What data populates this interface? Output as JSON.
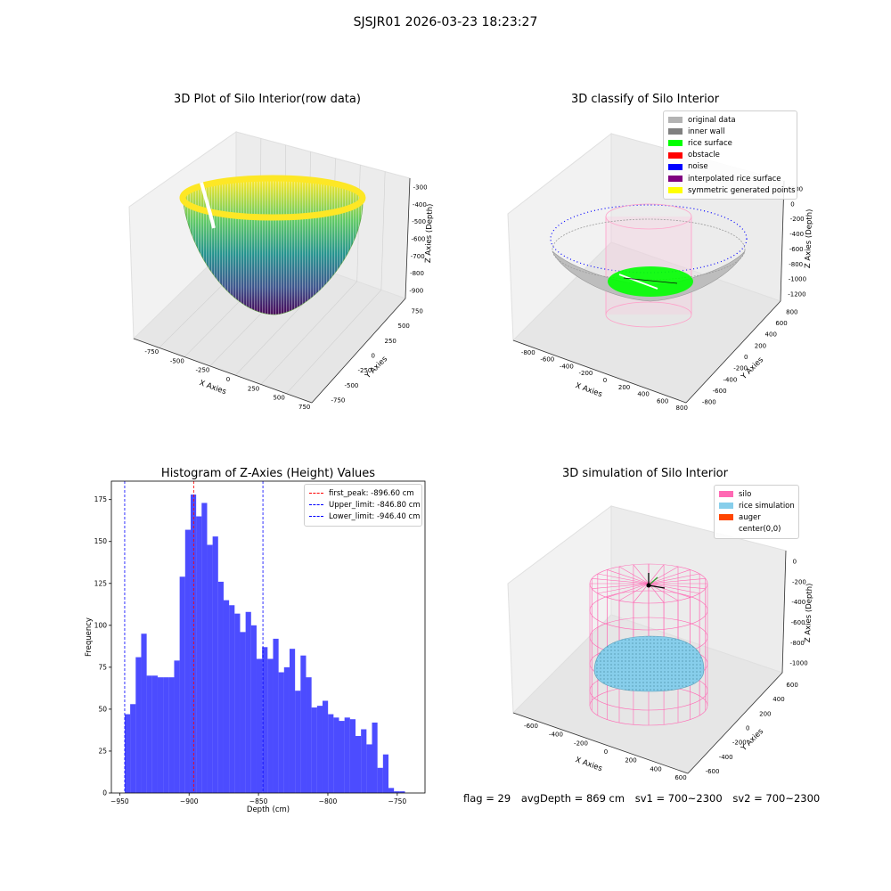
{
  "suptitle": "SJSJR01 2026-03-23 18:23:27",
  "panels": {
    "raw": {
      "title": "3D Plot of Silo Interior(row data)",
      "x_label": "X Axies",
      "y_label": "Y Axies",
      "z_label": "Z Axies (Depth)",
      "x_ticks": [
        "-750",
        "-500",
        "-250",
        "0",
        "250",
        "500",
        "750"
      ],
      "y_ticks": [
        "-750",
        "-500",
        "-250",
        "0",
        "250",
        "500",
        "750"
      ],
      "z_ticks": [
        "-300",
        "-400",
        "-500",
        "-600",
        "-700",
        "-800",
        "-900"
      ],
      "colormap": "viridis"
    },
    "classify": {
      "title": "3D classify of Silo Interior",
      "x_label": "X Axies",
      "y_label": "Y Axies",
      "z_label": "Z Axies (Depth)",
      "x_ticks": [
        "-800",
        "-600",
        "-400",
        "-200",
        "0",
        "200",
        "400",
        "600",
        "800"
      ],
      "y_ticks": [
        "-800",
        "-600",
        "-400",
        "-200",
        "0",
        "200",
        "400",
        "600",
        "800"
      ],
      "z_ticks": [
        "200",
        "0",
        "-200",
        "-400",
        "-600",
        "-800",
        "-1000",
        "-1200"
      ],
      "legend": [
        {
          "label": "original data",
          "color": "#b3b3b3"
        },
        {
          "label": "inner wall",
          "color": "#808080"
        },
        {
          "label": "rice surface",
          "color": "#00ff00"
        },
        {
          "label": "obstacle",
          "color": "#ff0000"
        },
        {
          "label": "noise",
          "color": "#0000ff"
        },
        {
          "label": "interpolated rice surface",
          "color": "#800080"
        },
        {
          "label": "symmetric generated points",
          "color": "#ffff00"
        }
      ]
    },
    "simulation": {
      "title": "3D simulation of Silo Interior",
      "x_label": "X Axies",
      "y_label": "Y Axies",
      "z_label": "Z Axies (Depth)",
      "x_ticks": [
        "-600",
        "-400",
        "-200",
        "0",
        "200",
        "400",
        "600"
      ],
      "y_ticks": [
        "-600",
        "-400",
        "-200",
        "0",
        "200",
        "400",
        "600"
      ],
      "z_ticks": [
        "0",
        "-200",
        "-400",
        "-600",
        "-800",
        "-1000"
      ],
      "legend": [
        {
          "label": "silo",
          "color": "#ff69b4"
        },
        {
          "label": "rice simulation",
          "color": "#87ceeb"
        },
        {
          "label": "auger",
          "color": "#ff4500"
        },
        {
          "label": "center(0,0)",
          "color": "#ffffff"
        }
      ]
    },
    "histogram": {
      "title": "Histogram of Z-Axies (Height) Values",
      "xlabel": "Depth (cm)",
      "ylabel": "Frequency",
      "xlim": [
        -956,
        -730
      ],
      "ylim": [
        0,
        186
      ],
      "xticks": [
        -950,
        -900,
        -850,
        -800,
        -750
      ],
      "xtick_labels": [
        "−950",
        "−900",
        "−850",
        "−800",
        "−750"
      ],
      "yticks": [
        0,
        25,
        50,
        75,
        100,
        125,
        150,
        175
      ],
      "bar_color": "#0000ff"
    }
  },
  "chart_data": {
    "type": "bar",
    "title": "Histogram of Z-Axies (Height) Values",
    "xlabel": "Depth (cm)",
    "ylabel": "Frequency",
    "bin_start": -946.4,
    "bin_width": 3.96,
    "values": [
      47,
      53,
      81,
      95,
      70,
      70,
      69,
      69,
      69,
      79,
      129,
      157,
      178,
      165,
      173,
      148,
      153,
      126,
      115,
      112,
      107,
      96,
      108,
      100,
      80,
      87,
      80,
      92,
      72,
      75,
      86,
      61,
      82,
      69,
      51,
      52,
      55,
      47,
      45,
      43,
      45,
      44,
      34,
      38,
      29,
      42,
      15,
      23,
      3,
      1,
      1
    ],
    "reference_lines": [
      {
        "label": "first_peak: -896.60 cm",
        "value": -896.6,
        "color": "#ff0000"
      },
      {
        "label": "Upper_limit: -846.80 cm",
        "value": -846.8,
        "color": "#0000ff"
      },
      {
        "label": "Lower_limit: -946.40 cm",
        "value": -946.4,
        "color": "#0000ff"
      }
    ]
  },
  "footer": {
    "flag": "flag = 29",
    "avg_depth": "avgDepth = 869 cm",
    "sv1": "sv1 = 700~2300",
    "sv2": "sv2 = 700~2300"
  }
}
